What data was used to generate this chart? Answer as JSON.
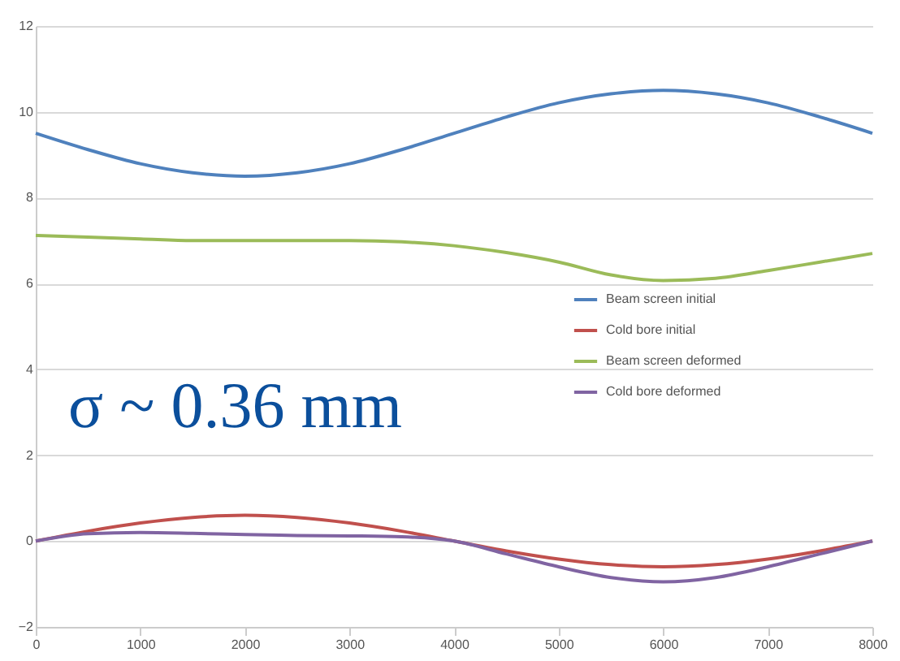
{
  "chart_data": {
    "type": "line",
    "x": [
      0,
      500,
      1000,
      1500,
      2000,
      2500,
      3000,
      3500,
      4000,
      4500,
      5000,
      5500,
      6000,
      6500,
      7000,
      7500,
      8000
    ],
    "series": [
      {
        "name": "Beam screen initial",
        "color": "#4f81bd",
        "values": [
          9.5,
          9.12,
          8.79,
          8.58,
          8.5,
          8.58,
          8.79,
          9.12,
          9.5,
          9.88,
          10.21,
          10.42,
          10.5,
          10.42,
          10.21,
          9.88,
          9.5
        ]
      },
      {
        "name": "Cold bore initial",
        "color": "#c0504d",
        "values": [
          0,
          0.23,
          0.42,
          0.55,
          0.6,
          0.55,
          0.42,
          0.23,
          0,
          -0.23,
          -0.42,
          -0.55,
          -0.6,
          -0.55,
          -0.42,
          -0.23,
          0
        ]
      },
      {
        "name": "Beam screen deformed",
        "color": "#9bbb59",
        "values": [
          7.12,
          7.08,
          7.04,
          7.0,
          7.0,
          7.0,
          7.0,
          6.97,
          6.88,
          6.72,
          6.5,
          6.2,
          6.07,
          6.12,
          6.3,
          6.5,
          6.7
        ]
      },
      {
        "name": "Cold bore deformed",
        "color": "#8064a2",
        "values": [
          0,
          0.17,
          0.2,
          0.18,
          0.15,
          0.13,
          0.12,
          0.1,
          0,
          -0.3,
          -0.6,
          -0.85,
          -0.95,
          -0.85,
          -0.6,
          -0.3,
          0
        ]
      }
    ],
    "xlim": [
      0,
      8000
    ],
    "xticks": [
      0,
      1000,
      2000,
      3000,
      4000,
      5000,
      6000,
      7000,
      8000
    ],
    "ylim": [
      -2,
      12
    ],
    "yticks": [
      -2,
      0,
      2,
      4,
      6,
      8,
      10,
      12
    ],
    "grid": "y",
    "legend": "right",
    "marker": "none",
    "line_style": "solid",
    "annotations": [
      "σ ~ 0.36 mm"
    ]
  }
}
